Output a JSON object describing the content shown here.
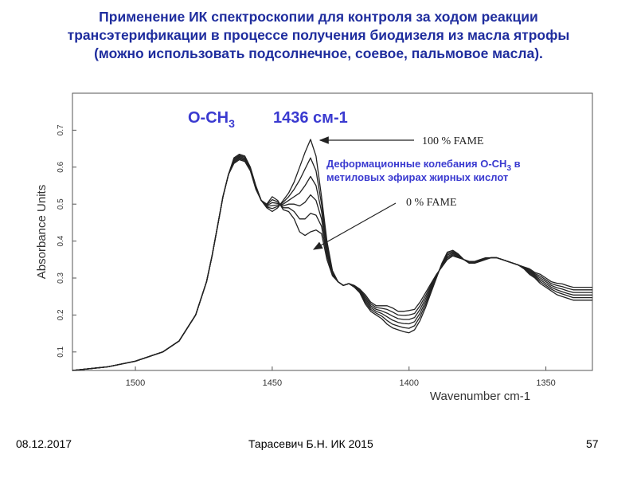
{
  "slide": {
    "title_lines": [
      "Применение ИК спектроскопии для контроля за ходом реакции",
      "трансэтерификации в процессе получения биодизеля из масла ятрофы",
      "(можно использовать подсолнечное, соевое, пальмовое масла)."
    ],
    "footer": {
      "date": "08.12.2017",
      "author": "Тарасевич Б.Н.   ИК 2015",
      "page": "57"
    }
  },
  "colors": {
    "title": "#1f2d9e",
    "spectra": "#222222",
    "annotation": "#3a3ad0"
  },
  "chart_data": {
    "type": "line",
    "xlabel": "Wavenumber cm-1",
    "ylabel": "Absorbance Units",
    "xlim": [
      1523,
      1333
    ],
    "ylim": [
      0.05,
      0.8
    ],
    "x_reversed": true,
    "x_ticks": [
      "1500",
      "1450",
      "1400",
      "1350"
    ],
    "x_tick_values": [
      1500,
      1450,
      1400,
      1350
    ],
    "y_ticks": [
      "0.1",
      "0.2",
      "0.3",
      "0.4",
      "0.5",
      "0.6",
      "0.7"
    ],
    "y_tick_values": [
      0.1,
      0.2,
      0.3,
      0.4,
      0.5,
      0.6,
      0.7
    ],
    "grid": false,
    "annotations": {
      "peak_group": "O-CH",
      "peak_group_sub": "3",
      "peak_wavenumber": "1436 см-1",
      "fame100": "100 % FAME",
      "fame0": "0 % FAME",
      "deformation_line1_pre": "Деформационные колебания  O-CH",
      "deformation_line1_sub": "3",
      "deformation_line1_post": " в",
      "deformation_line2": "метиловых эфирах жирных кислот"
    },
    "x": [
      1523,
      1510,
      1500,
      1490,
      1484,
      1478,
      1474,
      1472,
      1470,
      1468,
      1466,
      1464,
      1462,
      1460,
      1458,
      1456,
      1454,
      1452,
      1450,
      1448,
      1446,
      1444,
      1442,
      1440,
      1438,
      1436,
      1434,
      1432,
      1430,
      1428,
      1426,
      1424,
      1422,
      1420,
      1418,
      1416,
      1414,
      1412,
      1410,
      1408,
      1406,
      1404,
      1402,
      1400,
      1398,
      1396,
      1394,
      1392,
      1390,
      1388,
      1386,
      1384,
      1382,
      1380,
      1378,
      1376,
      1374,
      1372,
      1370,
      1368,
      1366,
      1364,
      1362,
      1360,
      1358,
      1356,
      1354,
      1352,
      1350,
      1348,
      1346,
      1344,
      1342,
      1340,
      1338,
      1336,
      1334,
      1333
    ],
    "series": [
      {
        "values": [
          0.05,
          0.06,
          0.075,
          0.1,
          0.13,
          0.2,
          0.29,
          0.36,
          0.44,
          0.52,
          0.58,
          0.625,
          0.635,
          0.63,
          0.6,
          0.55,
          0.51,
          0.49,
          0.48,
          0.49,
          0.51,
          0.53,
          0.56,
          0.6,
          0.64,
          0.675,
          0.63,
          0.52,
          0.4,
          0.32,
          0.29,
          0.28,
          0.285,
          0.275,
          0.26,
          0.23,
          0.21,
          0.2,
          0.19,
          0.175,
          0.165,
          0.16,
          0.155,
          0.152,
          0.16,
          0.185,
          0.22,
          0.26,
          0.3,
          0.34,
          0.37,
          0.375,
          0.365,
          0.35,
          0.34,
          0.34,
          0.345,
          0.35,
          0.355,
          0.355,
          0.35,
          0.345,
          0.34,
          0.335,
          0.325,
          0.31,
          0.3,
          0.285,
          0.275,
          0.265,
          0.255,
          0.25,
          0.245,
          0.24,
          0.24,
          0.24,
          0.24,
          0.24
        ]
      },
      {
        "values": [
          0.05,
          0.06,
          0.075,
          0.1,
          0.13,
          0.2,
          0.29,
          0.36,
          0.44,
          0.52,
          0.58,
          0.622,
          0.632,
          0.627,
          0.598,
          0.548,
          0.51,
          0.492,
          0.488,
          0.494,
          0.505,
          0.52,
          0.54,
          0.565,
          0.595,
          0.625,
          0.59,
          0.5,
          0.39,
          0.318,
          0.29,
          0.28,
          0.285,
          0.276,
          0.262,
          0.235,
          0.215,
          0.205,
          0.197,
          0.185,
          0.175,
          0.17,
          0.166,
          0.164,
          0.171,
          0.195,
          0.228,
          0.265,
          0.302,
          0.338,
          0.366,
          0.372,
          0.363,
          0.35,
          0.341,
          0.341,
          0.346,
          0.351,
          0.355,
          0.355,
          0.35,
          0.345,
          0.34,
          0.335,
          0.326,
          0.313,
          0.303,
          0.29,
          0.28,
          0.27,
          0.262,
          0.257,
          0.252,
          0.247,
          0.247,
          0.247,
          0.247,
          0.247
        ]
      },
      {
        "values": [
          0.05,
          0.06,
          0.075,
          0.1,
          0.13,
          0.2,
          0.29,
          0.36,
          0.44,
          0.52,
          0.58,
          0.619,
          0.629,
          0.624,
          0.596,
          0.546,
          0.51,
          0.494,
          0.496,
          0.498,
          0.5,
          0.51,
          0.52,
          0.53,
          0.55,
          0.575,
          0.55,
          0.48,
          0.38,
          0.315,
          0.29,
          0.28,
          0.285,
          0.277,
          0.264,
          0.24,
          0.22,
          0.21,
          0.204,
          0.195,
          0.186,
          0.18,
          0.177,
          0.176,
          0.182,
          0.205,
          0.236,
          0.27,
          0.304,
          0.336,
          0.362,
          0.369,
          0.361,
          0.35,
          0.342,
          0.342,
          0.347,
          0.352,
          0.355,
          0.355,
          0.35,
          0.345,
          0.34,
          0.335,
          0.327,
          0.316,
          0.306,
          0.295,
          0.285,
          0.275,
          0.268,
          0.263,
          0.258,
          0.254,
          0.254,
          0.254,
          0.254,
          0.254
        ]
      },
      {
        "values": [
          0.05,
          0.06,
          0.075,
          0.1,
          0.13,
          0.2,
          0.29,
          0.36,
          0.44,
          0.52,
          0.58,
          0.616,
          0.626,
          0.621,
          0.594,
          0.544,
          0.51,
          0.496,
          0.504,
          0.502,
          0.495,
          0.5,
          0.5,
          0.495,
          0.505,
          0.525,
          0.51,
          0.46,
          0.37,
          0.312,
          0.29,
          0.28,
          0.285,
          0.278,
          0.266,
          0.245,
          0.225,
          0.215,
          0.211,
          0.205,
          0.197,
          0.19,
          0.188,
          0.188,
          0.193,
          0.215,
          0.244,
          0.275,
          0.306,
          0.334,
          0.358,
          0.366,
          0.359,
          0.35,
          0.343,
          0.343,
          0.348,
          0.353,
          0.355,
          0.355,
          0.35,
          0.345,
          0.34,
          0.335,
          0.328,
          0.319,
          0.309,
          0.3,
          0.29,
          0.28,
          0.274,
          0.27,
          0.265,
          0.261,
          0.261,
          0.261,
          0.261,
          0.261
        ]
      },
      {
        "values": [
          0.05,
          0.06,
          0.075,
          0.1,
          0.13,
          0.2,
          0.29,
          0.36,
          0.44,
          0.52,
          0.58,
          0.613,
          0.623,
          0.618,
          0.592,
          0.542,
          0.51,
          0.498,
          0.512,
          0.506,
          0.49,
          0.49,
          0.48,
          0.46,
          0.46,
          0.475,
          0.47,
          0.44,
          0.36,
          0.309,
          0.29,
          0.28,
          0.285,
          0.279,
          0.268,
          0.25,
          0.23,
          0.22,
          0.218,
          0.215,
          0.208,
          0.2,
          0.199,
          0.2,
          0.204,
          0.225,
          0.252,
          0.28,
          0.308,
          0.332,
          0.354,
          0.363,
          0.357,
          0.35,
          0.344,
          0.344,
          0.349,
          0.354,
          0.355,
          0.355,
          0.35,
          0.345,
          0.34,
          0.335,
          0.329,
          0.322,
          0.312,
          0.305,
          0.295,
          0.285,
          0.28,
          0.277,
          0.272,
          0.268,
          0.268,
          0.268,
          0.268,
          0.268
        ]
      },
      {
        "values": [
          0.05,
          0.06,
          0.075,
          0.1,
          0.13,
          0.2,
          0.29,
          0.36,
          0.44,
          0.52,
          0.58,
          0.61,
          0.62,
          0.615,
          0.59,
          0.54,
          0.51,
          0.5,
          0.52,
          0.51,
          0.485,
          0.48,
          0.46,
          0.425,
          0.415,
          0.425,
          0.43,
          0.42,
          0.35,
          0.306,
          0.29,
          0.28,
          0.285,
          0.28,
          0.27,
          0.255,
          0.235,
          0.225,
          0.225,
          0.225,
          0.219,
          0.21,
          0.21,
          0.212,
          0.215,
          0.235,
          0.26,
          0.285,
          0.31,
          0.33,
          0.35,
          0.36,
          0.355,
          0.35,
          0.345,
          0.345,
          0.35,
          0.355,
          0.355,
          0.355,
          0.35,
          0.345,
          0.34,
          0.335,
          0.33,
          0.325,
          0.315,
          0.31,
          0.3,
          0.29,
          0.286,
          0.284,
          0.279,
          0.275,
          0.275,
          0.275,
          0.275,
          0.275
        ]
      }
    ]
  }
}
